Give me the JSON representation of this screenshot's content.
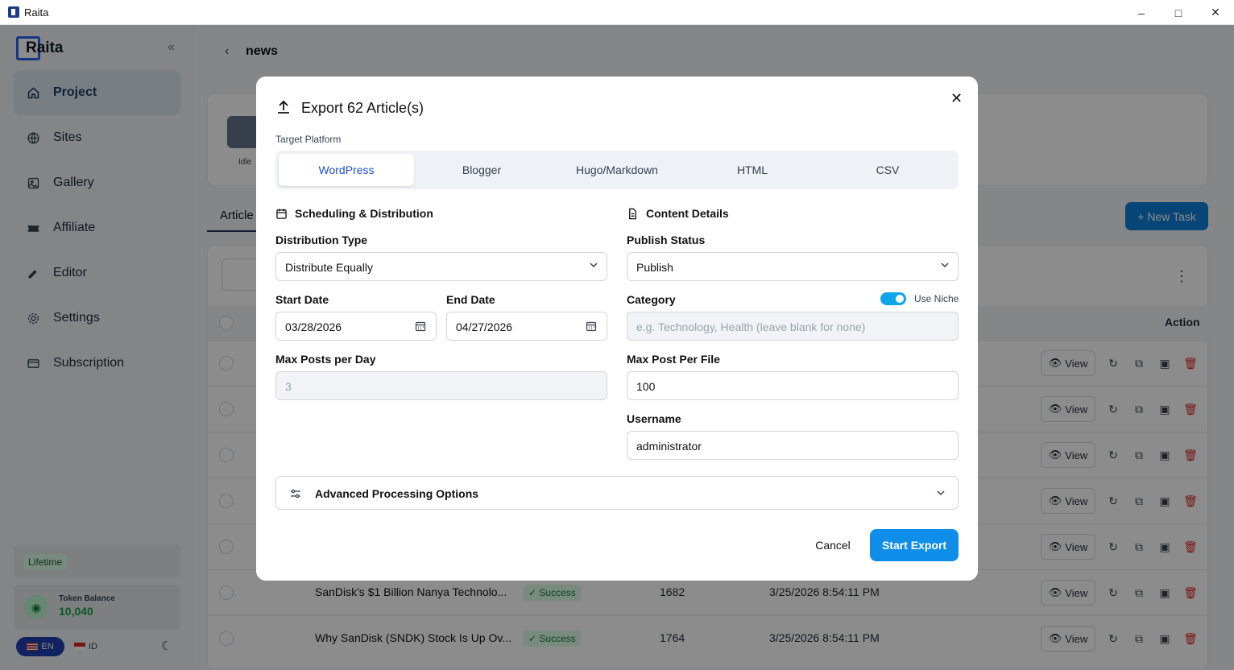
{
  "window": {
    "title": "Raita"
  },
  "sidebar": {
    "logo": "Raita",
    "items": [
      {
        "label": "Project",
        "icon": "home-icon"
      },
      {
        "label": "Sites",
        "icon": "globe-icon"
      },
      {
        "label": "Gallery",
        "icon": "image-icon"
      },
      {
        "label": "Affiliate",
        "icon": "ticket-icon"
      },
      {
        "label": "Editor",
        "icon": "pencil-icon"
      },
      {
        "label": "Settings",
        "icon": "gear-icon"
      },
      {
        "label": "Subscription",
        "icon": "card-icon"
      }
    ],
    "plan_badge": "Lifetime",
    "token_label": "Token Balance",
    "token_value": "10,040",
    "lang_en": "EN",
    "lang_id": "ID"
  },
  "main": {
    "page_title": "news",
    "status": "Idle",
    "tab": "Article",
    "new_task": "+ New Task",
    "search_placeholder": "S",
    "column_action": "Action",
    "view_label": "View",
    "rows": [
      {
        "title": "",
        "status": "",
        "words": "",
        "date": ""
      },
      {
        "title": "",
        "status": "",
        "words": "",
        "date": ""
      },
      {
        "title": "",
        "status": "",
        "words": "",
        "date": ""
      },
      {
        "title": "",
        "status": "",
        "words": "",
        "date": ""
      },
      {
        "title": "",
        "status": "",
        "words": "",
        "date": ""
      },
      {
        "title": "SanDisk's $1 Billion Nanya Technolo...",
        "status": "Success",
        "words": "1682",
        "date": "3/25/2026 8:54:11 PM"
      },
      {
        "title": "Why SanDisk (SNDK) Stock Is Up Ov...",
        "status": "Success",
        "words": "1764",
        "date": "3/25/2026 8:54:11 PM"
      }
    ]
  },
  "modal": {
    "title": "Export 62 Article(s)",
    "target_platform_label": "Target Platform",
    "platforms": [
      "WordPress",
      "Blogger",
      "Hugo/Markdown",
      "HTML",
      "CSV"
    ],
    "selected_platform": "WordPress",
    "scheduling_title": "Scheduling & Distribution",
    "content_title": "Content Details",
    "distribution_type_label": "Distribution Type",
    "distribution_type_value": "Distribute Equally",
    "start_date_label": "Start Date",
    "start_date_value": "03/28/2026",
    "end_date_label": "End Date",
    "end_date_value": "04/27/2026",
    "max_posts_label": "Max Posts per Day",
    "max_posts_value": "3",
    "publish_status_label": "Publish Status",
    "publish_status_value": "Publish",
    "category_label": "Category",
    "use_niche_label": "Use Niche",
    "use_niche_on": true,
    "category_placeholder": "e.g. Technology, Health (leave blank for none)",
    "max_post_file_label": "Max Post Per File",
    "max_post_file_value": "100",
    "username_label": "Username",
    "username_value": "administrator",
    "advanced_label": "Advanced Processing Options",
    "cancel_label": "Cancel",
    "start_label": "Start Export"
  },
  "colors": {
    "accent": "#0e8ee8",
    "selected_tab_text": "#1d4ed8",
    "success": "#15803d",
    "danger": "#dc2626"
  }
}
